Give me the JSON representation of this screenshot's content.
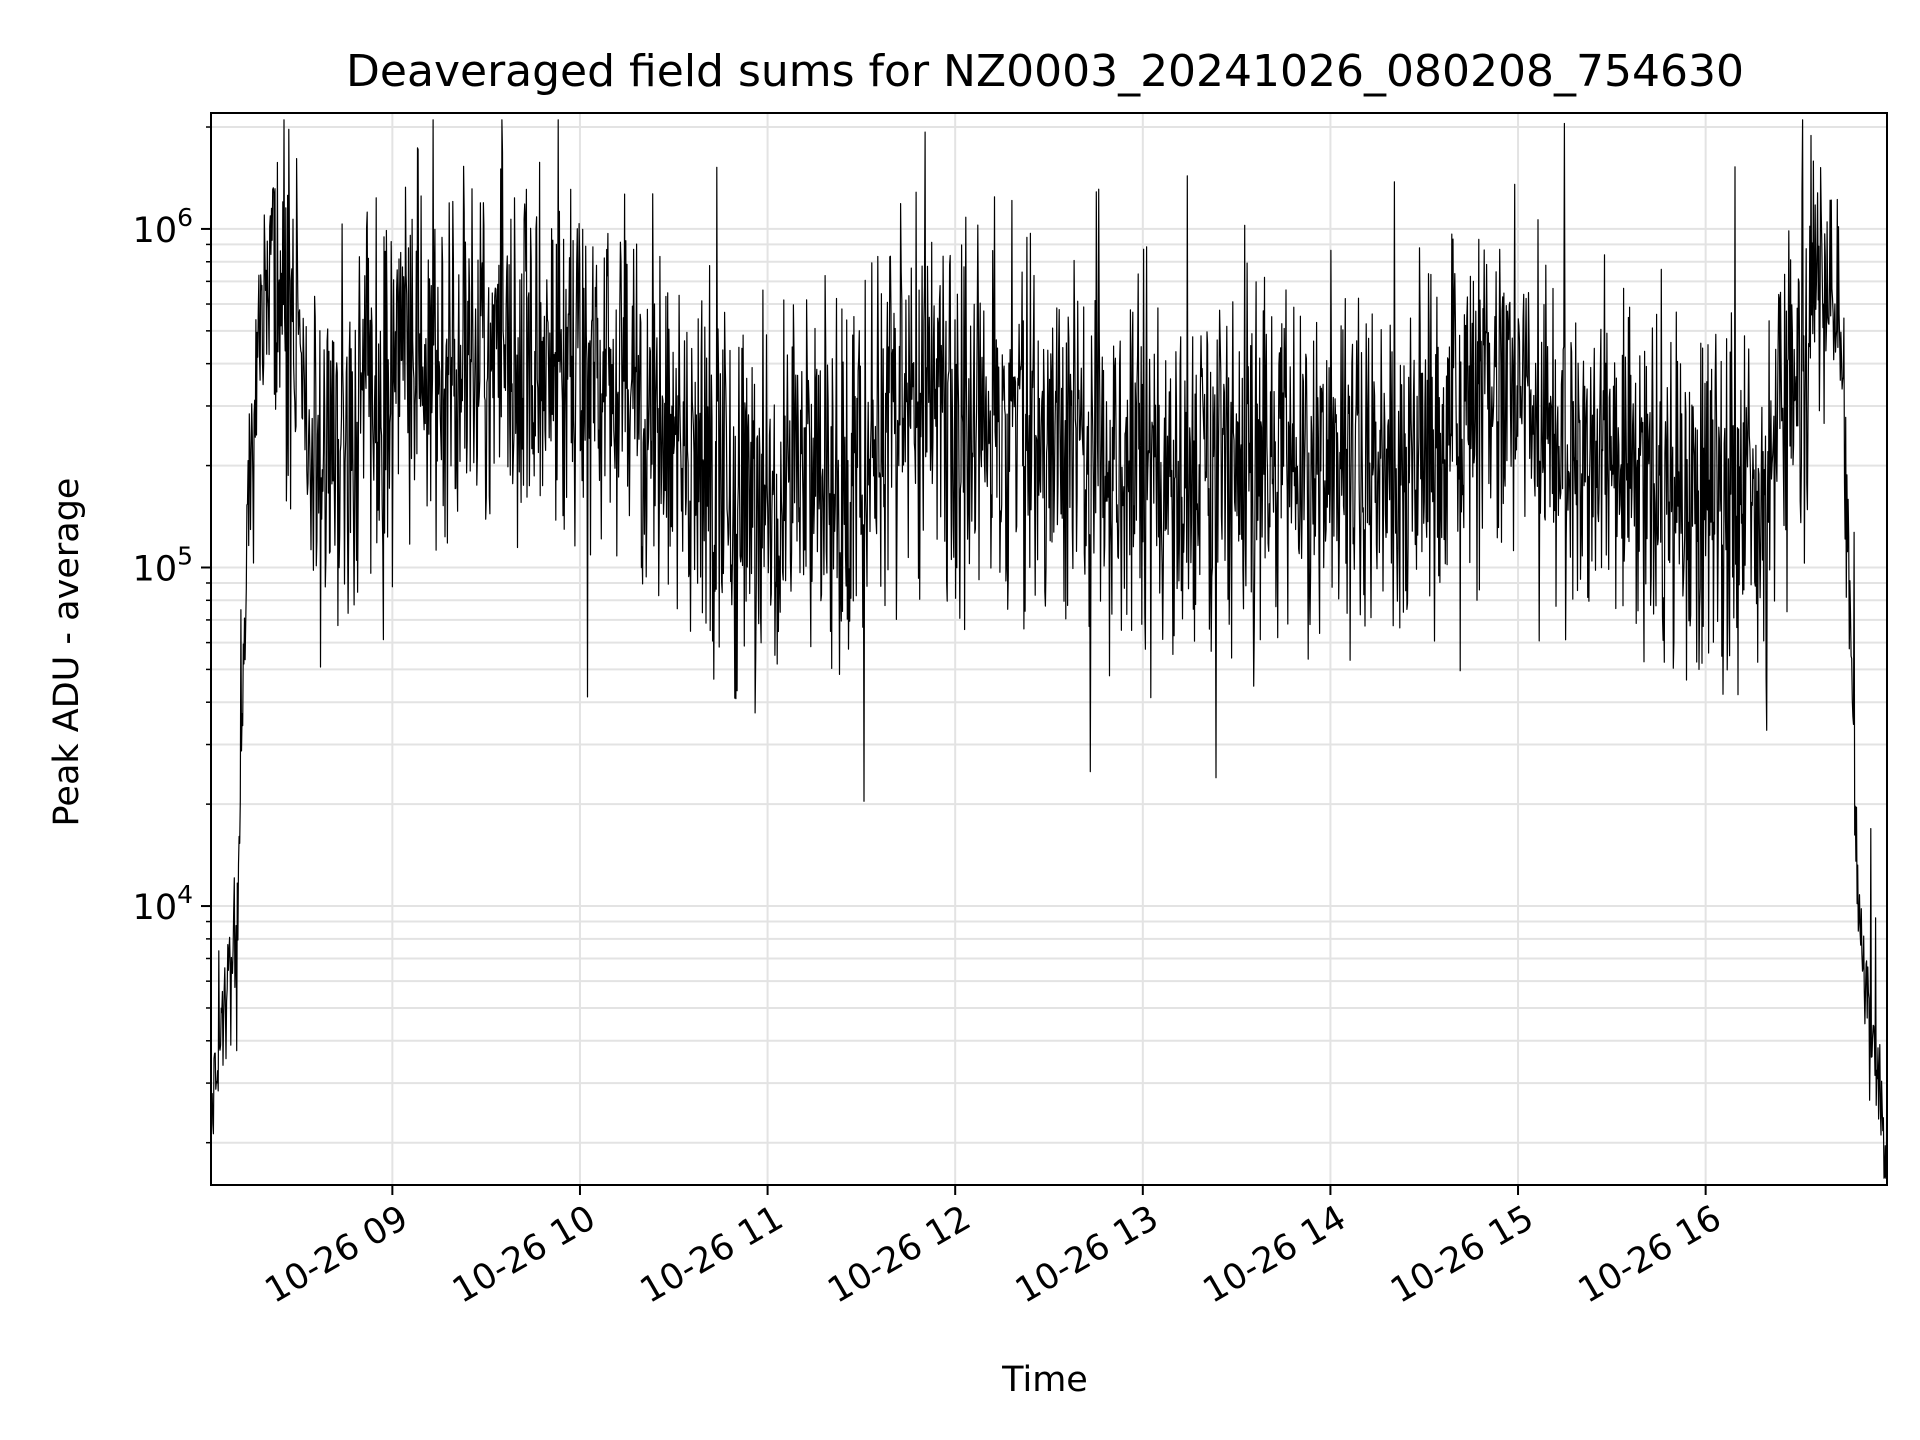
{
  "chart_data": {
    "type": "line",
    "title": "Deaveraged field sums for NZ0003_20241026_080208_754630",
    "xlabel": "Time",
    "ylabel": "Peak ADU - average",
    "yscale": "log",
    "ylim": [
      1500,
      2200000
    ],
    "xlim": [
      "2024-10-26 08:02",
      "2024-10-26 16:58"
    ],
    "x_ticks": [
      {
        "value": "2024-10-26 09:00",
        "label": "10-26 09"
      },
      {
        "value": "2024-10-26 10:00",
        "label": "10-26 10"
      },
      {
        "value": "2024-10-26 11:00",
        "label": "10-26 11"
      },
      {
        "value": "2024-10-26 12:00",
        "label": "10-26 12"
      },
      {
        "value": "2024-10-26 13:00",
        "label": "10-26 13"
      },
      {
        "value": "2024-10-26 14:00",
        "label": "10-26 14"
      },
      {
        "value": "2024-10-26 15:00",
        "label": "10-26 15"
      },
      {
        "value": "2024-10-26 16:00",
        "label": "10-26 16"
      }
    ],
    "y_ticks": [
      {
        "value": 10000,
        "base": "10",
        "exp": "4"
      },
      {
        "value": 100000,
        "base": "10",
        "exp": "5"
      },
      {
        "value": 1000000,
        "base": "10",
        "exp": "6"
      }
    ],
    "grid": true,
    "line_color": "#000000",
    "series": [
      {
        "x": [
          "2024-10-26 08:02",
          "2024-10-26 08:04",
          "2024-10-26 08:06",
          "2024-10-26 08:08",
          "2024-10-26 08:10",
          "2024-10-26 08:12",
          "2024-10-26 08:14",
          "2024-10-26 08:16",
          "2024-10-26 08:18",
          "2024-10-26 08:20",
          "2024-10-26 08:22",
          "2024-10-26 08:24",
          "2024-10-26 08:26",
          "2024-10-26 08:28",
          "2024-10-26 08:30",
          "2024-10-26 08:35",
          "2024-10-26 08:40",
          "2024-10-26 08:45",
          "2024-10-26 08:50",
          "2024-10-26 08:55",
          "2024-10-26 09:00",
          "2024-10-26 09:10",
          "2024-10-26 09:20",
          "2024-10-26 09:30",
          "2024-10-26 09:40",
          "2024-10-26 09:50",
          "2024-10-26 10:00",
          "2024-10-26 10:10",
          "2024-10-26 10:20",
          "2024-10-26 10:30",
          "2024-10-26 10:40",
          "2024-10-26 10:50",
          "2024-10-26 11:00",
          "2024-10-26 11:10",
          "2024-10-26 11:20",
          "2024-10-26 11:30",
          "2024-10-26 11:40",
          "2024-10-26 11:50",
          "2024-10-26 12:00",
          "2024-10-26 12:10",
          "2024-10-26 12:20",
          "2024-10-26 12:30",
          "2024-10-26 12:40",
          "2024-10-26 12:50",
          "2024-10-26 13:00",
          "2024-10-26 13:10",
          "2024-10-26 13:20",
          "2024-10-26 13:30",
          "2024-10-26 13:40",
          "2024-10-26 13:50",
          "2024-10-26 14:00",
          "2024-10-26 14:10",
          "2024-10-26 14:20",
          "2024-10-26 14:30",
          "2024-10-26 14:40",
          "2024-10-26 14:50",
          "2024-10-26 15:00",
          "2024-10-26 15:10",
          "2024-10-26 15:20",
          "2024-10-26 15:30",
          "2024-10-26 15:40",
          "2024-10-26 15:50",
          "2024-10-26 16:00",
          "2024-10-26 16:10",
          "2024-10-26 16:20",
          "2024-10-26 16:30",
          "2024-10-26 16:35",
          "2024-10-26 16:40",
          "2024-10-26 16:43",
          "2024-10-26 16:46",
          "2024-10-26 16:49",
          "2024-10-26 16:52",
          "2024-10-26 16:55",
          "2024-10-26 16:58"
        ],
        "y": [
          3000,
          4000,
          5000,
          6000,
          9000,
          40000,
          150000,
          300000,
          500000,
          700000,
          800000,
          700000,
          600000,
          500000,
          400000,
          250000,
          180000,
          200000,
          260000,
          300000,
          350000,
          420000,
          400000,
          450000,
          380000,
          400000,
          350000,
          320000,
          300000,
          250000,
          180000,
          150000,
          150000,
          180000,
          220000,
          250000,
          300000,
          350000,
          300000,
          280000,
          260000,
          250000,
          250000,
          230000,
          200000,
          190000,
          180000,
          190000,
          210000,
          220000,
          200000,
          190000,
          200000,
          230000,
          300000,
          350000,
          320000,
          260000,
          230000,
          200000,
          180000,
          160000,
          170000,
          180000,
          200000,
          300000,
          700000,
          800000,
          500000,
          100000,
          8000,
          5000,
          3000,
          1800
        ]
      }
    ]
  }
}
